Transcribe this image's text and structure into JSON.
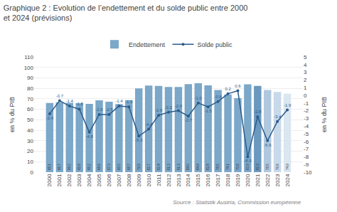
{
  "chart_data": {
    "type": "bar",
    "title": "Graphique 2 : Evolution de l’endettement et du solde public entre 2000 et 2024 (prévisions)",
    "annotations": [
      "Source : Statistik Austria, Commission européenne"
    ],
    "categories": [
      "2000",
      "2001",
      "2002",
      "2003",
      "2004",
      "2005",
      "2006",
      "2007",
      "2008",
      "2009",
      "2010",
      "2011",
      "2012",
      "2013",
      "2014",
      "2015",
      "2016",
      "2017",
      "2018",
      "2019",
      "2020",
      "2021",
      "2022",
      "2023",
      "2024"
    ],
    "series": [
      {
        "name": "Endettement",
        "type": "bar",
        "color": "#7ba7c9",
        "colors": [
          "#7ba7c9",
          "#7ba7c9",
          "#7ba7c9",
          "#7ba7c9",
          "#7ba7c9",
          "#7ba7c9",
          "#7ba7c9",
          "#7ba7c9",
          "#7ba7c9",
          "#7ba7c9",
          "#7ba7c9",
          "#7ba7c9",
          "#7ba7c9",
          "#7ba7c9",
          "#7ba7c9",
          "#7ba7c9",
          "#7ba7c9",
          "#7ba7c9",
          "#7ba7c9",
          "#7ba7c9",
          "#7ba7c9",
          "#6a98be",
          "#b0c8de",
          "#c8d9ea",
          "#dae6f0"
        ],
        "values": [
          66.1,
          66.7,
          66.2,
          65.8,
          65.2,
          68.6,
          67.3,
          65.0,
          68.7,
          79.9,
          82.7,
          82.4,
          81.3,
          81.3,
          84.0,
          84.9,
          82.8,
          78.5,
          74.1,
          70.6,
          83.9,
          82.3,
          78.5,
          76.6,
          74.9
        ],
        "value_labels": [
          "66.1",
          "66.7",
          "66.2",
          "65.8",
          "65.2",
          "68.6",
          "67.3",
          "65.0",
          "68.7",
          "79.9",
          "82.7",
          "82.4",
          "81.3",
          "81.3",
          "84.0",
          "84.9",
          "82.8",
          "78.5",
          "74.1",
          "70.6",
          "83.9",
          "82.3",
          "78.5",
          "76.6",
          "74.9"
        ]
      },
      {
        "name": "Solde public",
        "type": "line",
        "axis": "y2",
        "color": "#2b5c8a",
        "marker": "circle",
        "values": [
          -2.4,
          -0.7,
          -1.4,
          -1.8,
          -4.8,
          -2.5,
          -2.5,
          -1.4,
          -1.5,
          -5.3,
          -4.4,
          -2.6,
          -2.2,
          -2.0,
          -2.7,
          -1.0,
          -1.5,
          -0.8,
          0.2,
          0.6,
          -8.0,
          -2.8,
          -5.9,
          -3.4,
          -1.9
        ],
        "value_labels": [
          "-2.4",
          "-0.7",
          "-1.4",
          "-1.8",
          "-4.8",
          "-2.5",
          "-2.5",
          "-1.4",
          "-1.5",
          "-5.3",
          "-4.4",
          "-2.6",
          "-2.2",
          "-2.0",
          "-2.7",
          "-1.0",
          "-1.5",
          "-0.8",
          "0.2",
          "0.6",
          "-8.0",
          "-2.8",
          "-5.9",
          "-3.4",
          "-1.9"
        ]
      }
    ],
    "ylabel": "en % du PIB",
    "y2label": "en % du PIB",
    "ylim": [
      0,
      110
    ],
    "yticks": [
      0,
      10,
      20,
      30,
      40,
      50,
      60,
      70,
      80,
      90,
      100,
      110
    ],
    "y2lim": [
      -10,
      5
    ],
    "y2ticks": [
      -10,
      -9,
      -8,
      -7,
      -6,
      -5,
      -4,
      -3,
      -2,
      -1,
      0,
      1,
      2,
      3,
      4,
      5
    ],
    "grid": true,
    "legend": "top",
    "data_labels": true
  }
}
